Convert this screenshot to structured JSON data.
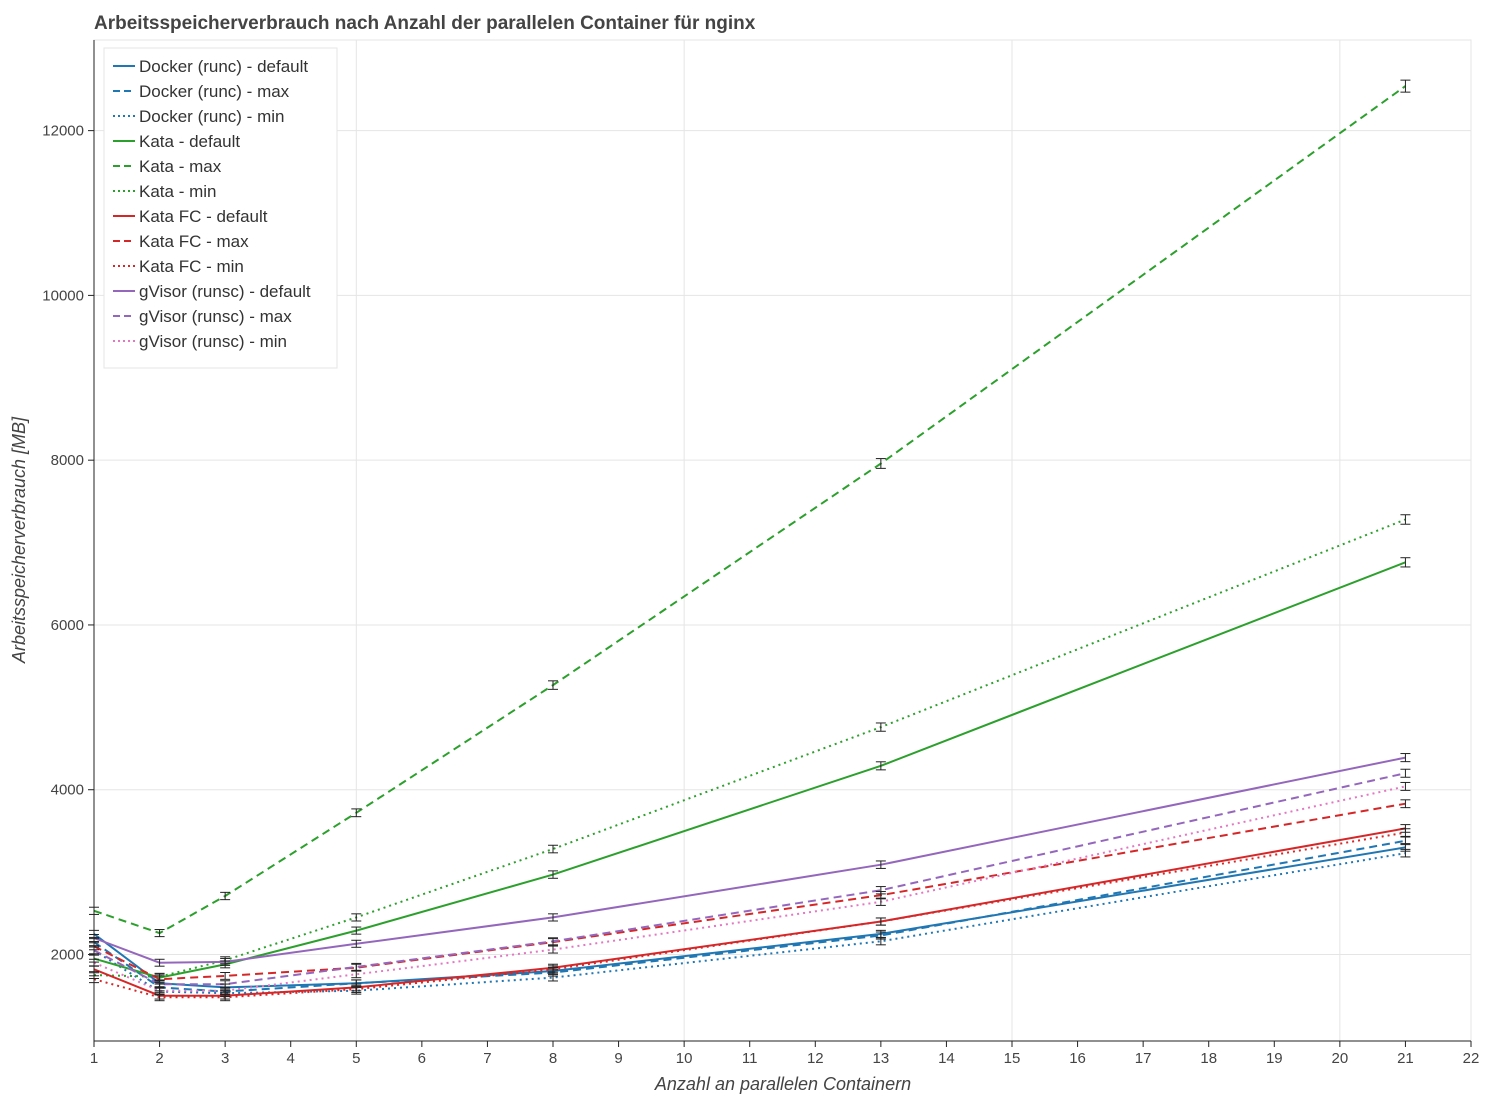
{
  "chart_data": {
    "type": "line",
    "title": "Arbeitsspeicherverbrauch nach Anzahl der parallelen Container für nginx",
    "xlabel": "Anzahl an parallelen Containern",
    "ylabel": "Arbeitsspeicherverbrauch [MB]",
    "xlim": [
      1,
      22
    ],
    "ylim": [
      950,
      13100
    ],
    "x_ticks": [
      1,
      2,
      3,
      4,
      5,
      6,
      7,
      8,
      9,
      10,
      11,
      12,
      13,
      14,
      15,
      16,
      17,
      18,
      19,
      20,
      21,
      22
    ],
    "y_ticks": [
      2000,
      4000,
      6000,
      8000,
      10000,
      12000
    ],
    "grid": true,
    "legend_position": "top-left",
    "x": [
      1,
      2,
      3,
      5,
      8,
      13,
      21
    ],
    "series": [
      {
        "name": "Docker (runc) - default",
        "color": "#1f77b4",
        "dash": "solid",
        "values": [
          2250,
          1650,
          1600,
          1650,
          1800,
          2250,
          3300
        ]
      },
      {
        "name": "Docker (runc) - max",
        "color": "#1f77b4",
        "dash": "dashed",
        "values": [
          2150,
          1600,
          1550,
          1650,
          1780,
          2230,
          3380
        ]
      },
      {
        "name": "Docker (runc) - min",
        "color": "#1f77b4",
        "dash": "dotted",
        "values": [
          2050,
          1550,
          1530,
          1560,
          1720,
          2160,
          3230
        ]
      },
      {
        "name": "Kata - default",
        "color": "#2ca02c",
        "dash": "solid",
        "values": [
          1950,
          1720,
          1880,
          2290,
          2970,
          4290,
          6760
        ]
      },
      {
        "name": "Kata - max",
        "color": "#2ca02c",
        "dash": "dashed",
        "values": [
          2530,
          2260,
          2710,
          3720,
          5270,
          7960,
          12540
        ]
      },
      {
        "name": "Kata - min",
        "color": "#2ca02c",
        "dash": "dotted",
        "values": [
          1750,
          1730,
          1930,
          2450,
          3280,
          4760,
          7280
        ]
      },
      {
        "name": "Kata FC - default",
        "color": "#d62728",
        "dash": "solid",
        "values": [
          1820,
          1500,
          1500,
          1600,
          1840,
          2400,
          3530
        ]
      },
      {
        "name": "Kata FC - max",
        "color": "#d62728",
        "dash": "dashed",
        "values": [
          2100,
          1700,
          1740,
          1840,
          2150,
          2720,
          3830
        ]
      },
      {
        "name": "Kata FC - min",
        "color": "#d62728",
        "dash": "dotted",
        "values": [
          1700,
          1480,
          1480,
          1580,
          1820,
          2400,
          3480
        ]
      },
      {
        "name": "gVisor (runsc) - default",
        "color": "#9467bd",
        "dash": "solid",
        "values": [
          2200,
          1900,
          1910,
          2130,
          2450,
          3090,
          4390
        ]
      },
      {
        "name": "gVisor (runsc) - max",
        "color": "#9467bd",
        "dash": "dashed",
        "values": [
          2050,
          1640,
          1640,
          1850,
          2160,
          2780,
          4200
        ]
      },
      {
        "name": "gVisor (runsc) - min",
        "color": "#e377c2",
        "dash": "dotted",
        "values": [
          1900,
          1560,
          1560,
          1760,
          2060,
          2640,
          4040
        ]
      }
    ]
  }
}
